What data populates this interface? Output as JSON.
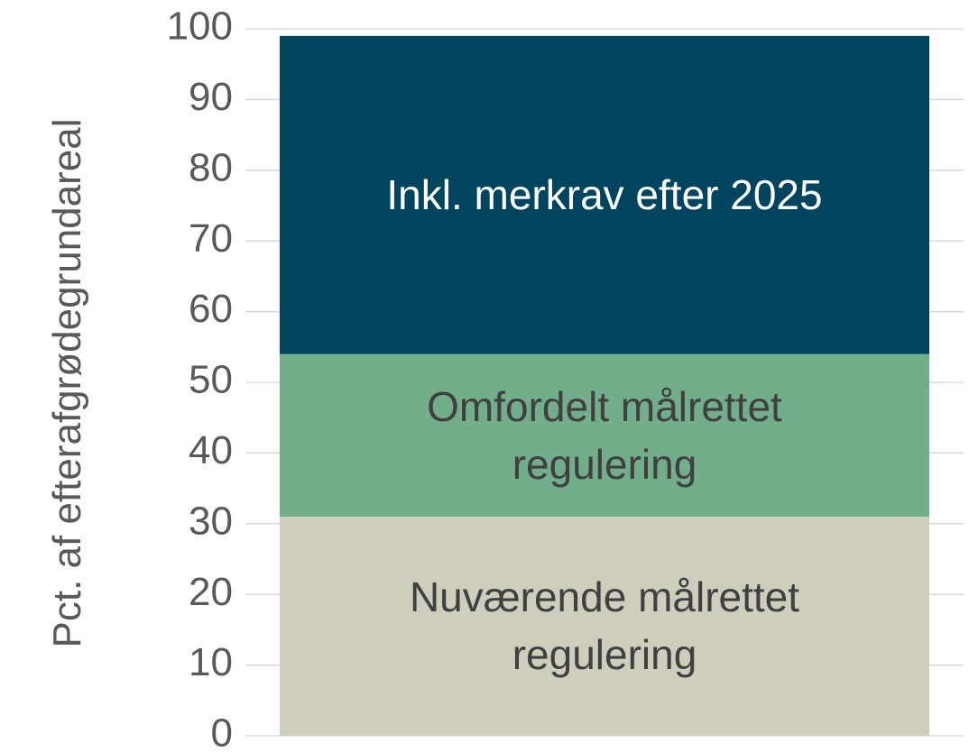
{
  "chart_data": {
    "type": "stacked_bar",
    "y_label": "Pct. af efterafgrødegrundareal",
    "categories": [
      null
    ],
    "series": [
      {
        "name": "Nuværende målrettet regulering",
        "color": "#cfcebd",
        "label_color": "#404040",
        "values": [
          31
        ]
      },
      {
        "name": "Omfordelt målrettet regulering",
        "color": "#72ae8a",
        "label_color": "#404040",
        "values": [
          23
        ]
      },
      {
        "name": "Inkl. merkrav efter 2025",
        "color": "#00445e",
        "label_color": "#ffffff",
        "values": [
          45
        ]
      }
    ],
    "ylim": [
      0,
      100
    ],
    "yticks": [
      0,
      10,
      20,
      30,
      40,
      50,
      60,
      70,
      80,
      90,
      100
    ],
    "grid": true
  }
}
